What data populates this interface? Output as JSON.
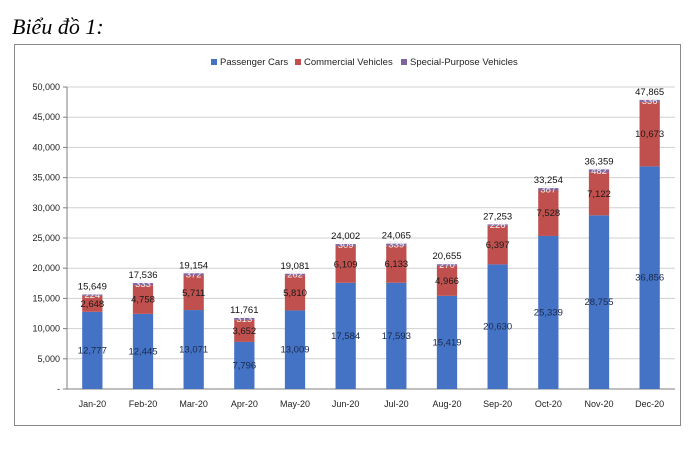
{
  "caption": "Biểu đồ 1:",
  "colors": {
    "passenger": "#4472c4",
    "commercial": "#c0504d",
    "special": "#8064a2",
    "grid": "#d0d0d0",
    "axis": "#7f7f7f"
  },
  "chart_data": {
    "type": "bar",
    "stacked": true,
    "title": "",
    "xlabel": "",
    "ylabel": "",
    "ylim": [
      0,
      50000
    ],
    "yticks": [
      "-",
      "5,000",
      "10,000",
      "15,000",
      "20,000",
      "25,000",
      "30,000",
      "35,000",
      "40,000",
      "45,000",
      "50,000"
    ],
    "grid": true,
    "legend_position": "top-center",
    "categories": [
      "Jan-20",
      "Feb-20",
      "Mar-20",
      "Apr-20",
      "May-20",
      "Jun-20",
      "Jul-20",
      "Aug-20",
      "Sep-20",
      "Oct-20",
      "Nov-20",
      "Dec-20"
    ],
    "series": [
      {
        "name": "Passenger Cars",
        "values": [
          12777,
          12445,
          13071,
          7796,
          13009,
          17584,
          17593,
          15419,
          20630,
          25339,
          28755,
          36856
        ]
      },
      {
        "name": "Commercial Vehicles",
        "values": [
          2648,
          4758,
          5711,
          3652,
          5810,
          6109,
          6133,
          4966,
          6397,
          7528,
          7122,
          10673
        ]
      },
      {
        "name": "Special-Purpose Vehicles",
        "values": [
          224,
          333,
          372,
          313,
          262,
          309,
          339,
          270,
          226,
          387,
          482,
          336
        ]
      }
    ],
    "segment_labels": [
      [
        "12,777",
        "12,445",
        "13,071",
        "7,796",
        "13,009",
        "17,584",
        "17,593",
        "15,419",
        "20,630",
        "25,339",
        "28,755",
        "36,856"
      ],
      [
        "2,648",
        "4,758",
        "5,711",
        "3,652",
        "5,810",
        "6,109",
        "6,133",
        "4,966",
        "6,397",
        "7,528",
        "7,122",
        "10,673"
      ],
      [
        "224",
        "333",
        "372",
        "313",
        "262",
        "309",
        "339",
        "270",
        "226",
        "387",
        "482",
        "336"
      ]
    ],
    "total_labels": [
      "15,649",
      "17,536",
      "19,154",
      "11,761",
      "19,081",
      "24,002",
      "24,065",
      "20,655",
      "27,253",
      "33,254",
      "36,359",
      "47,865"
    ]
  }
}
